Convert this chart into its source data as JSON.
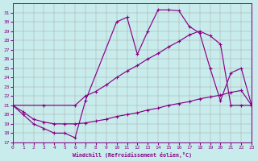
{
  "background_color": "#c8ecec",
  "line_color": "#880088",
  "xlabel": "Windchill (Refroidissement éolien,°C)",
  "xlim": [
    0,
    23
  ],
  "ylim": [
    17,
    32
  ],
  "yticks": [
    17,
    18,
    19,
    20,
    21,
    22,
    23,
    24,
    25,
    26,
    27,
    28,
    29,
    30,
    31
  ],
  "xticks": [
    0,
    1,
    2,
    3,
    4,
    5,
    6,
    7,
    8,
    9,
    10,
    11,
    12,
    13,
    14,
    15,
    16,
    17,
    18,
    19,
    20,
    21,
    22,
    23
  ],
  "line1_x": [
    0,
    1,
    2,
    3,
    4,
    5,
    6,
    7,
    10,
    11,
    12,
    13,
    14,
    15,
    16,
    17,
    18,
    19,
    20,
    21,
    22,
    23
  ],
  "line1_y": [
    21,
    20,
    19,
    18.5,
    18,
    18,
    17.5,
    21.5,
    30,
    30.5,
    26.5,
    29,
    31.3,
    31.3,
    31.2,
    29.5,
    28.8,
    25.0,
    21.5,
    24.5,
    25.0,
    21
  ],
  "line2_x": [
    0,
    3,
    6,
    7,
    8,
    9,
    10,
    11,
    12,
    13,
    14,
    15,
    16,
    17,
    18,
    19,
    20,
    21,
    22,
    23
  ],
  "line2_y": [
    21,
    21,
    21,
    22,
    22.5,
    23.2,
    24.0,
    24.7,
    25.3,
    26.0,
    26.6,
    27.3,
    27.9,
    28.6,
    29.0,
    28.5,
    27.6,
    21,
    21,
    21
  ],
  "line3_x": [
    0,
    1,
    2,
    3,
    4,
    5,
    6,
    7,
    8,
    9,
    10,
    11,
    12,
    13,
    14,
    15,
    16,
    17,
    18,
    19,
    20,
    21,
    22,
    23
  ],
  "line3_y": [
    21,
    20.3,
    19.5,
    19.2,
    19.0,
    19.0,
    19.0,
    19.1,
    19.3,
    19.5,
    19.8,
    20.0,
    20.2,
    20.5,
    20.7,
    21.0,
    21.2,
    21.4,
    21.7,
    21.9,
    22.1,
    22.4,
    22.6,
    21
  ]
}
